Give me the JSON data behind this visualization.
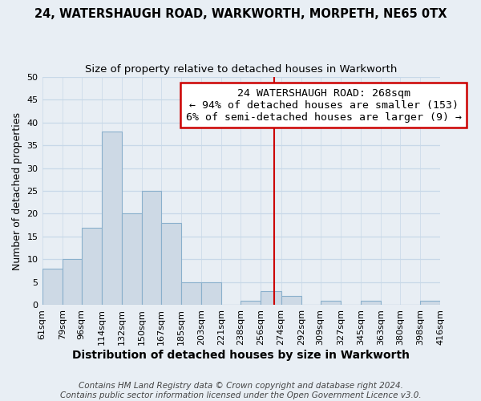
{
  "title": "24, WATERSHAUGH ROAD, WARKWORTH, MORPETH, NE65 0TX",
  "subtitle": "Size of property relative to detached houses in Warkworth",
  "xlabel": "Distribution of detached houses by size in Warkworth",
  "ylabel": "Number of detached properties",
  "bar_color": "#cdd9e5",
  "bar_edgecolor": "#8ab0cc",
  "grid_color": "#c8d8e8",
  "background_color": "#e8eef4",
  "plot_bg_color": "#e8eef4",
  "vline_x": 268,
  "vline_color": "#cc0000",
  "bin_edges": [
    61,
    79,
    96,
    114,
    132,
    150,
    167,
    185,
    203,
    221,
    238,
    256,
    274,
    292,
    309,
    327,
    345,
    363,
    380,
    398,
    416
  ],
  "bin_labels": [
    "61sqm",
    "79sqm",
    "96sqm",
    "114sqm",
    "132sqm",
    "150sqm",
    "167sqm",
    "185sqm",
    "203sqm",
    "221sqm",
    "238sqm",
    "256sqm",
    "274sqm",
    "292sqm",
    "309sqm",
    "327sqm",
    "345sqm",
    "363sqm",
    "380sqm",
    "398sqm",
    "416sqm"
  ],
  "counts": [
    8,
    10,
    17,
    38,
    20,
    25,
    18,
    5,
    5,
    0,
    1,
    3,
    2,
    0,
    1,
    0,
    1,
    0,
    0,
    1
  ],
  "ylim": [
    0,
    50
  ],
  "yticks": [
    0,
    5,
    10,
    15,
    20,
    25,
    30,
    35,
    40,
    45,
    50
  ],
  "annotation_title": "24 WATERSHAUGH ROAD: 268sqm",
  "annotation_line1": "← 94% of detached houses are smaller (153)",
  "annotation_line2": "6% of semi-detached houses are larger (9) →",
  "footer1": "Contains HM Land Registry data © Crown copyright and database right 2024.",
  "footer2": "Contains public sector information licensed under the Open Government Licence v3.0.",
  "title_fontsize": 10.5,
  "subtitle_fontsize": 9.5,
  "xlabel_fontsize": 10,
  "ylabel_fontsize": 9,
  "tick_fontsize": 8,
  "annotation_fontsize": 9.5,
  "footer_fontsize": 7.5
}
